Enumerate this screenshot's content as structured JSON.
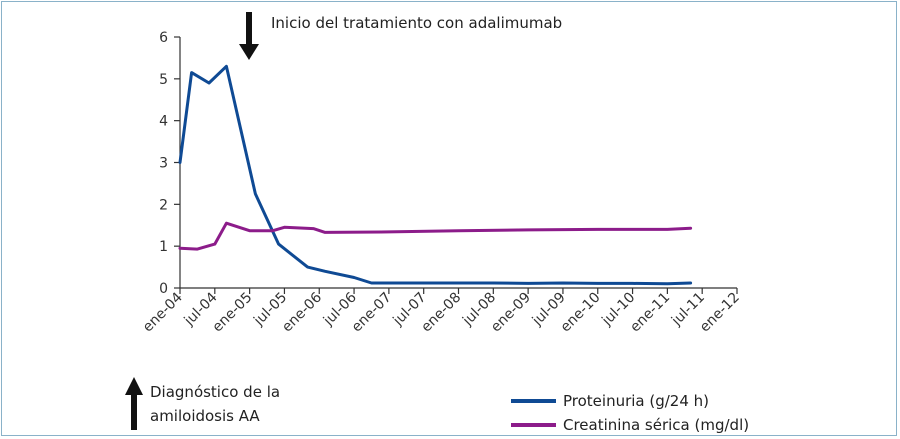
{
  "chart_data": {
    "type": "line",
    "x_categories": [
      "ene-04",
      "jul-04",
      "ene-05",
      "jul-05",
      "ene-06",
      "jul-06",
      "ene-07",
      "jul-07",
      "ene-08",
      "jul-08",
      "ene-09",
      "jul-09",
      "ene-10",
      "jul-10",
      "ene-11",
      "jul-11",
      "ene-12"
    ],
    "x_unit": "months since ene-04",
    "ylim": [
      0,
      6
    ],
    "y_ticks": [
      0,
      1,
      2,
      3,
      4,
      5,
      6
    ],
    "grid": false,
    "legend_position": "bottom-right",
    "series": [
      {
        "name": "Proteinuria (g/24 h)",
        "color": "#0f4a94",
        "points": [
          [
            0,
            3.0
          ],
          [
            2,
            5.15
          ],
          [
            5,
            4.9
          ],
          [
            8,
            5.3
          ],
          [
            13,
            2.25
          ],
          [
            17,
            1.05
          ],
          [
            22,
            0.5
          ],
          [
            25,
            0.4
          ],
          [
            30,
            0.25
          ],
          [
            33,
            0.12
          ],
          [
            37,
            0.12
          ],
          [
            42,
            0.12
          ],
          [
            48,
            0.12
          ],
          [
            54,
            0.12
          ],
          [
            60,
            0.11
          ],
          [
            66,
            0.12
          ],
          [
            72,
            0.11
          ],
          [
            78,
            0.11
          ],
          [
            84,
            0.1
          ],
          [
            88,
            0.12
          ]
        ]
      },
      {
        "name": "Creatinina sérica (mg/dl)",
        "color": "#8c1c8a",
        "points": [
          [
            0,
            0.95
          ],
          [
            3,
            0.93
          ],
          [
            6,
            1.05
          ],
          [
            8,
            1.55
          ],
          [
            12,
            1.37
          ],
          [
            16,
            1.37
          ],
          [
            18,
            1.45
          ],
          [
            23,
            1.42
          ],
          [
            25,
            1.33
          ],
          [
            36,
            1.34
          ],
          [
            48,
            1.37
          ],
          [
            60,
            1.39
          ],
          [
            72,
            1.4
          ],
          [
            84,
            1.4
          ],
          [
            88,
            1.43
          ]
        ]
      }
    ],
    "annotations": {
      "treatment_start": {
        "text": "Inicio del tratamiento con adalimumab",
        "x": 8
      },
      "diagnosis": {
        "text_line1": "Diagnóstico de la",
        "text_line2": "amiloidosis AA"
      }
    },
    "colors": {
      "frame": "#8ab2c9",
      "axis": "#333333",
      "arrow": "#111111"
    }
  }
}
